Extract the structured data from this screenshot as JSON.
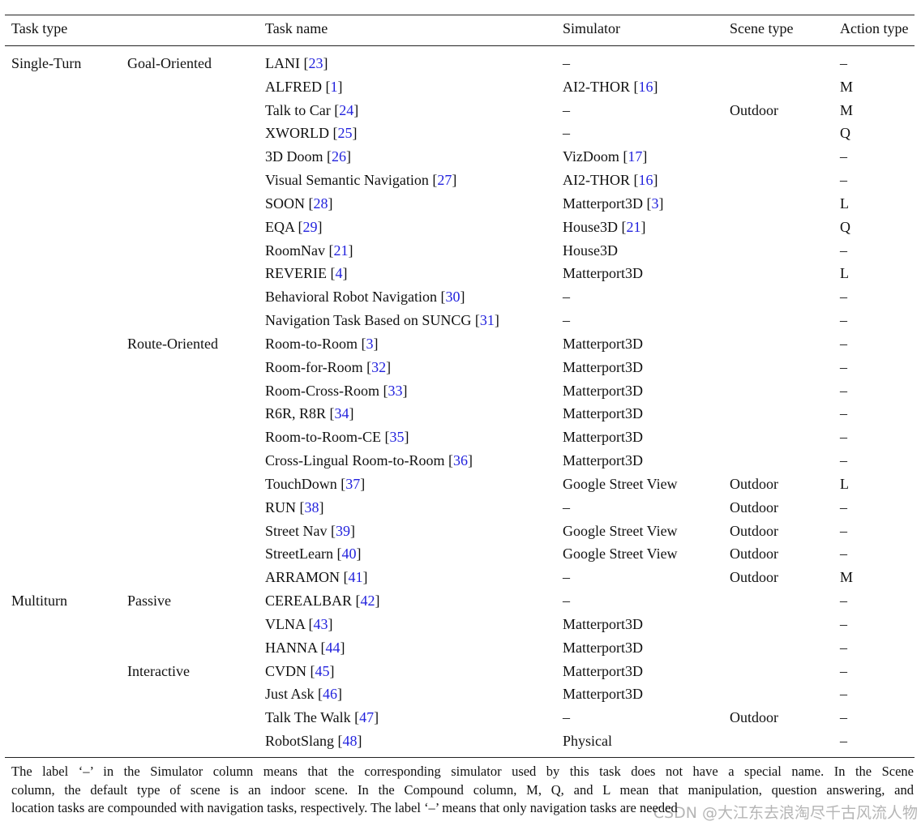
{
  "table": {
    "header": [
      "Task type",
      null,
      "Task name",
      "Simulator",
      "Scene type",
      "Action type"
    ],
    "rows": [
      [
        "Single-Turn",
        "Goal-Oriented",
        "LANI [23]",
        "–",
        null,
        "–"
      ],
      [
        null,
        null,
        "ALFRED [1]",
        "AI2-THOR [16]",
        null,
        "M"
      ],
      [
        null,
        null,
        "Talk to Car [24]",
        "–",
        "Outdoor",
        "M"
      ],
      [
        null,
        null,
        "XWORLD [25]",
        "–",
        null,
        "Q"
      ],
      [
        null,
        null,
        "3D Doom [26]",
        "VizDoom [17]",
        null,
        "–"
      ],
      [
        null,
        null,
        "Visual Semantic Navigation [27]",
        "AI2-THOR [16]",
        null,
        "–"
      ],
      [
        null,
        null,
        "SOON [28]",
        "Matterport3D [3]",
        null,
        "L"
      ],
      [
        null,
        null,
        "EQA [29]",
        "House3D [21]",
        null,
        "Q"
      ],
      [
        null,
        null,
        "RoomNav [21]",
        "House3D",
        null,
        "–"
      ],
      [
        null,
        null,
        "REVERIE [4]",
        "Matterport3D",
        null,
        "L"
      ],
      [
        null,
        null,
        "Behavioral Robot Navigation [30]",
        "–",
        null,
        "–"
      ],
      [
        null,
        null,
        "Navigation Task Based on SUNCG [31]",
        "–",
        null,
        "–"
      ],
      [
        null,
        "Route-Oriented",
        "Room-to-Room [3]",
        "Matterport3D",
        null,
        "–"
      ],
      [
        null,
        null,
        "Room-for-Room [32]",
        "Matterport3D",
        null,
        "–"
      ],
      [
        null,
        null,
        "Room-Cross-Room [33]",
        "Matterport3D",
        null,
        "–"
      ],
      [
        null,
        null,
        "R6R, R8R [34]",
        "Matterport3D",
        null,
        "–"
      ],
      [
        null,
        null,
        "Room-to-Room-CE [35]",
        "Matterport3D",
        null,
        "–"
      ],
      [
        null,
        null,
        "Cross-Lingual Room-to-Room [36]",
        "Matterport3D",
        null,
        "–"
      ],
      [
        null,
        null,
        "TouchDown [37]",
        "Google Street View",
        "Outdoor",
        "L"
      ],
      [
        null,
        null,
        "RUN [38]",
        "–",
        "Outdoor",
        "–"
      ],
      [
        null,
        null,
        "Street Nav [39]",
        "Google Street View",
        "Outdoor",
        "–"
      ],
      [
        null,
        null,
        "StreetLearn [40]",
        "Google Street View",
        "Outdoor",
        "–"
      ],
      [
        null,
        null,
        "ARRAMON [41]",
        "–",
        "Outdoor",
        "M"
      ],
      [
        "Multiturn",
        "Passive",
        "CEREALBAR [42]",
        "–",
        null,
        "–"
      ],
      [
        null,
        null,
        "VLNA [43]",
        "Matterport3D",
        null,
        "–"
      ],
      [
        null,
        null,
        "HANNA [44]",
        "Matterport3D",
        null,
        "–"
      ],
      [
        null,
        "Interactive",
        "CVDN [45]",
        "Matterport3D",
        null,
        "–"
      ],
      [
        null,
        null,
        "Just Ask [46]",
        "Matterport3D",
        null,
        "–"
      ],
      [
        null,
        null,
        "Talk The Walk [47]",
        "–",
        "Outdoor",
        "–"
      ],
      [
        null,
        null,
        "RobotSlang [48]",
        "Physical",
        null,
        "–"
      ]
    ],
    "footnote": [
      "The label ‘–’ in the Simulator column means that the corresponding simulator used by this task does not have a special name. In the Scene",
      "column, the default type of scene is an indoor scene. In the Compound column, M, Q, and L mean that manipulation, question answering, and",
      "location tasks are compounded with navigation tasks, respectively. The label ‘–’ means that only navigation tasks are needed"
    ]
  },
  "watermark": "CSDN @大江东去浪淘尽千古风流人物"
}
